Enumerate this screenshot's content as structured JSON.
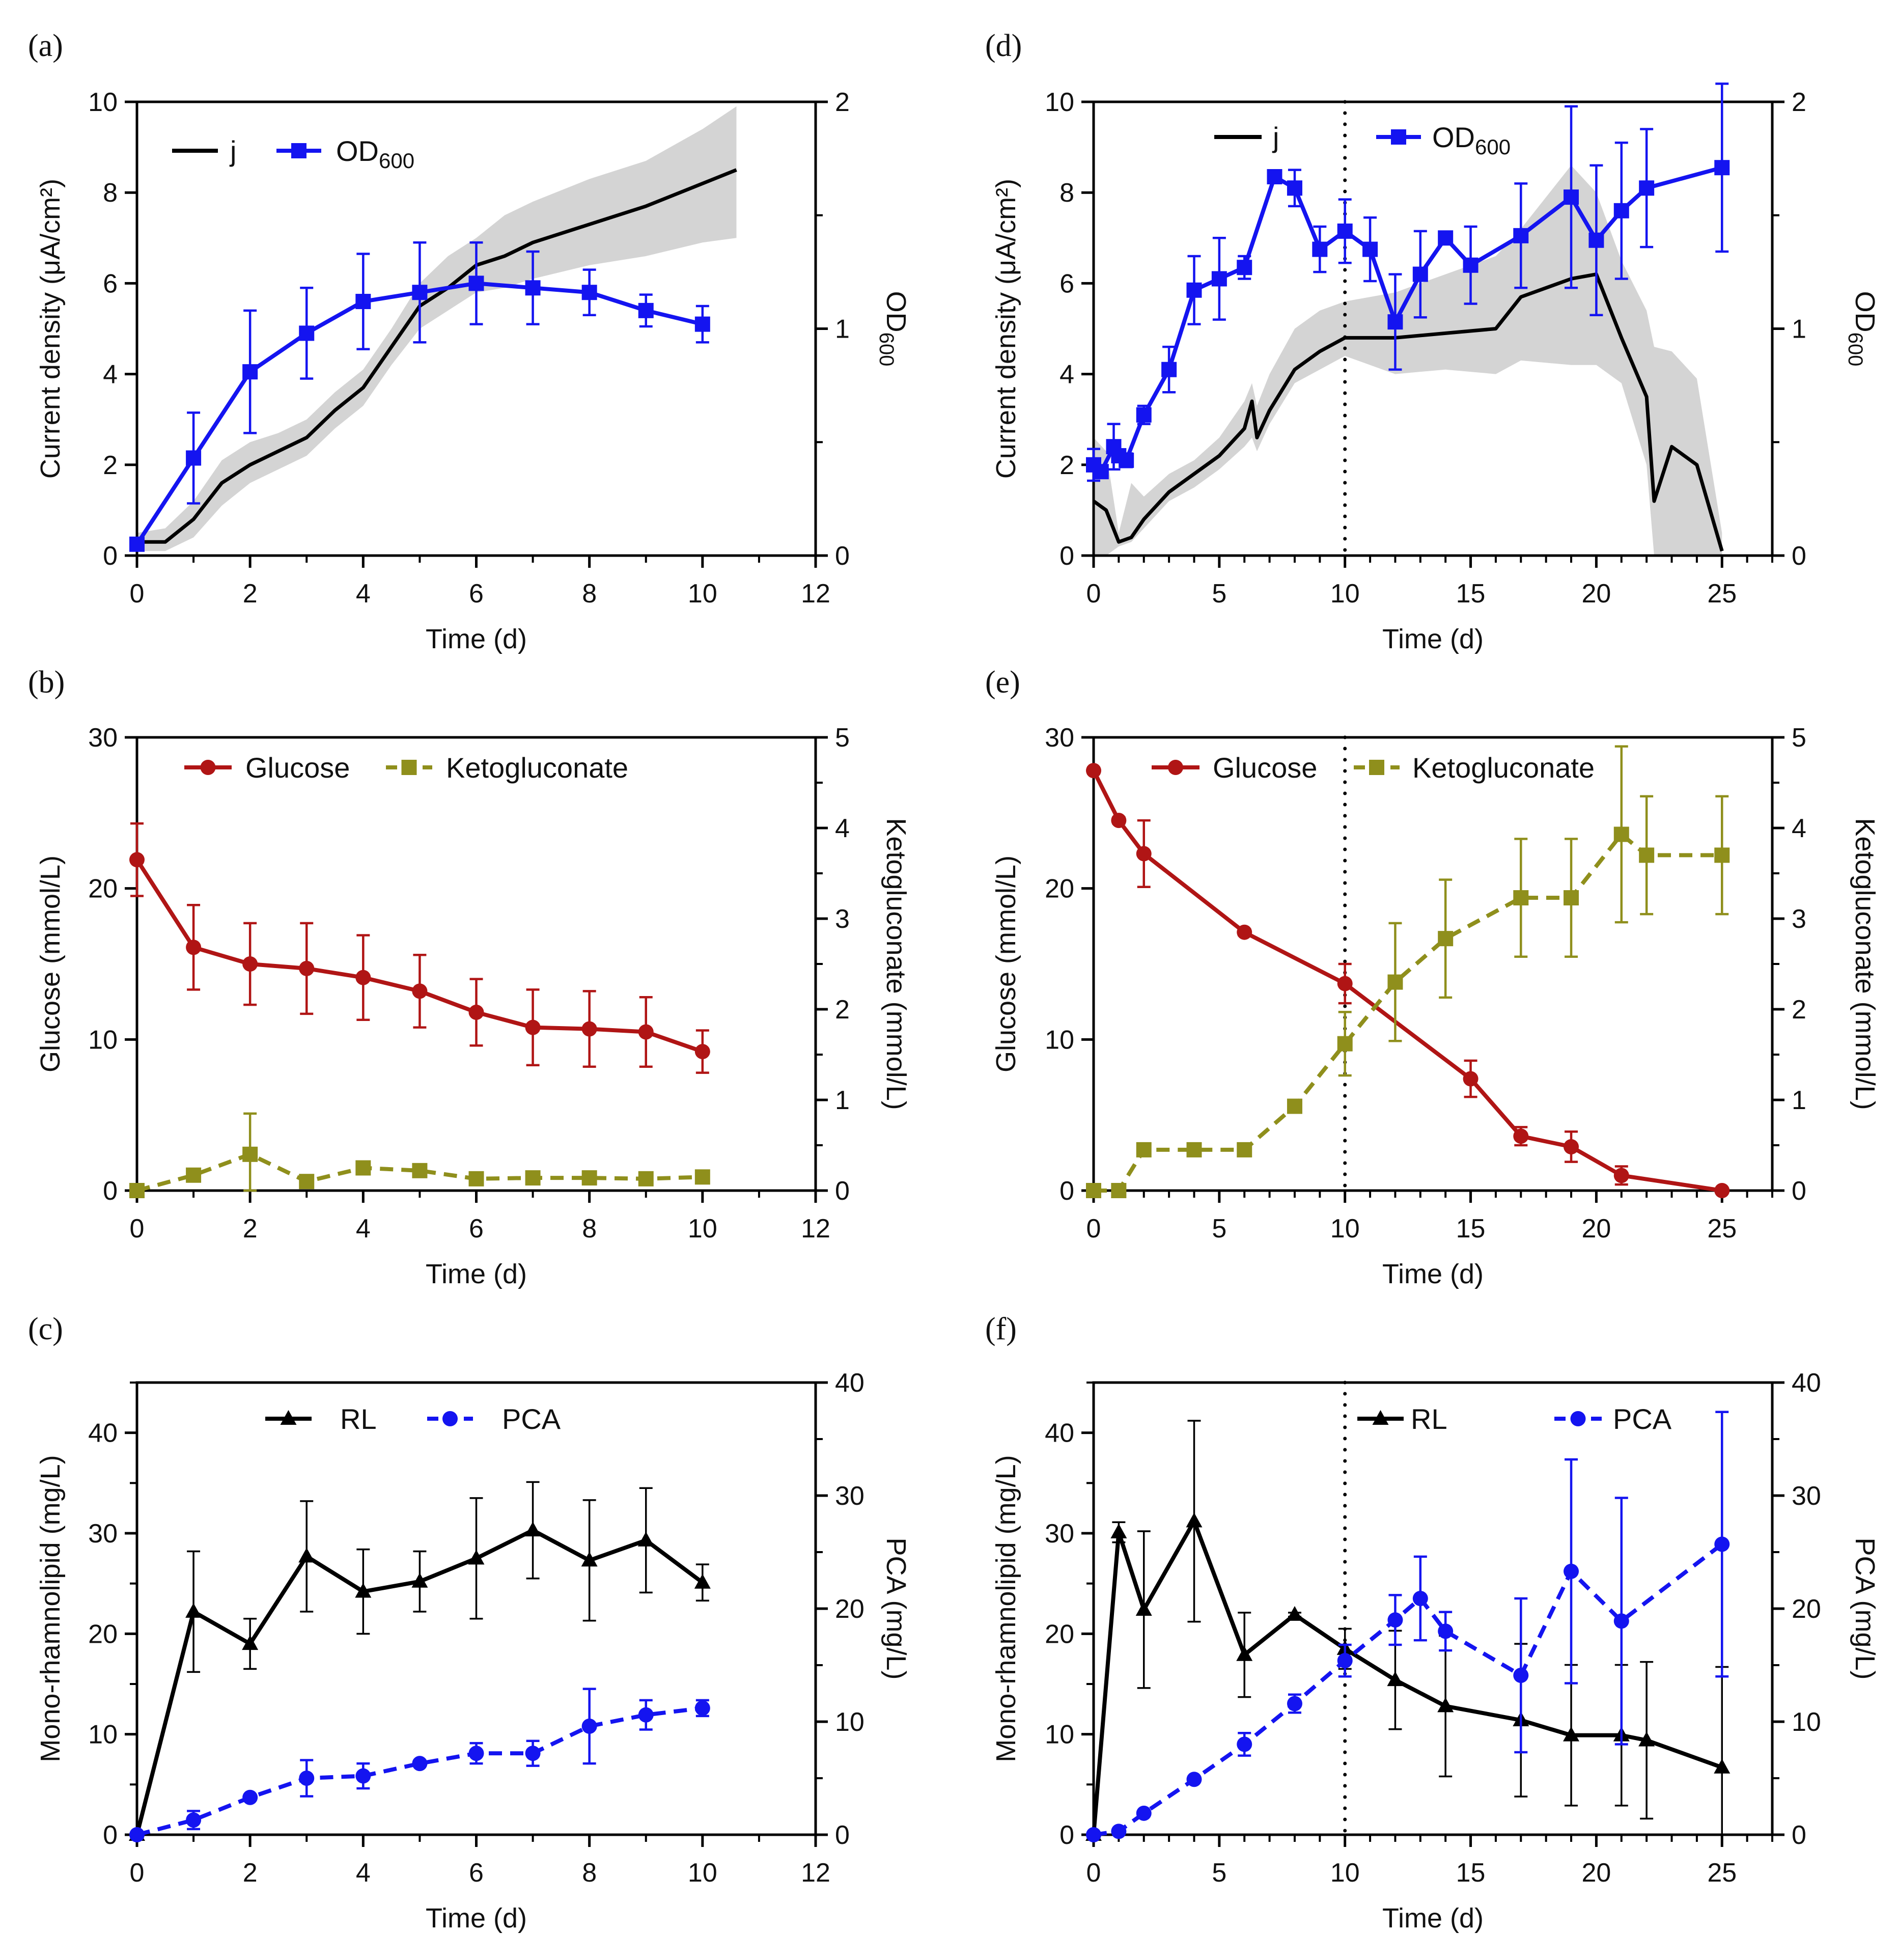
{
  "chart_data": [
    {
      "panel": "(a)",
      "type": "line",
      "xlabel": "Time (d)",
      "ylabel": "Current density (μA/cm²)",
      "y2label_main": "OD",
      "y2label_sub": "600",
      "xlim": [
        0,
        12
      ],
      "ylim": [
        0,
        10
      ],
      "y2lim": [
        0,
        2
      ],
      "xticks": [
        0,
        2,
        4,
        6,
        8,
        10,
        12
      ],
      "yticks": [
        0,
        2,
        4,
        6,
        8,
        10
      ],
      "y2ticks": [
        0,
        1,
        2
      ],
      "series": [
        {
          "name": "j",
          "label": "j",
          "sub": "",
          "axis": "y",
          "color": "#000000",
          "marker": "none",
          "dash": false,
          "x": [
            0,
            0.5,
            1,
            1.5,
            2,
            2.5,
            3,
            3.5,
            4,
            4.5,
            5,
            5.5,
            6,
            6.5,
            7,
            8,
            9,
            10,
            10.6
          ],
          "y": [
            0.3,
            0.3,
            0.8,
            1.6,
            2.0,
            2.3,
            2.6,
            3.2,
            3.7,
            4.6,
            5.5,
            5.9,
            6.4,
            6.6,
            6.9,
            7.3,
            7.7,
            8.2,
            8.5
          ],
          "band_lo": [
            0.1,
            0.1,
            0.4,
            1.1,
            1.6,
            1.9,
            2.2,
            2.8,
            3.3,
            4.2,
            5.0,
            5.4,
            5.8,
            5.9,
            6.1,
            6.4,
            6.6,
            6.9,
            7.0
          ],
          "band_hi": [
            0.5,
            0.6,
            1.2,
            2.1,
            2.5,
            2.7,
            3.0,
            3.6,
            4.1,
            5.0,
            6.0,
            6.6,
            7.0,
            7.5,
            7.8,
            8.3,
            8.7,
            9.4,
            9.9
          ]
        },
        {
          "name": "OD600",
          "label": "OD",
          "sub": "600",
          "axis": "y2",
          "color": "#1414f0",
          "marker": "square",
          "dash": false,
          "x": [
            0,
            1,
            2,
            3,
            4,
            5,
            6,
            7,
            8,
            9,
            10
          ],
          "y": [
            0.05,
            0.43,
            0.81,
            0.98,
            1.12,
            1.16,
            1.2,
            1.18,
            1.16,
            1.08,
            1.02
          ],
          "err": [
            0.02,
            0.2,
            0.27,
            0.2,
            0.21,
            0.22,
            0.18,
            0.16,
            0.1,
            0.07,
            0.08
          ]
        }
      ]
    },
    {
      "panel": "(b)",
      "type": "line",
      "xlabel": "Time (d)",
      "ylabel": "Glucose (mmol/L)",
      "y2label_main": "Ketogluconate (mmol/L)",
      "y2label_sub": "",
      "xlim": [
        0,
        12
      ],
      "ylim": [
        0,
        30
      ],
      "y2lim": [
        0,
        5
      ],
      "xticks": [
        0,
        2,
        4,
        6,
        8,
        10,
        12
      ],
      "yticks": [
        0,
        10,
        20,
        30
      ],
      "y2ticks": [
        0,
        1,
        2,
        3,
        4,
        5
      ],
      "series": [
        {
          "name": "Glucose",
          "label": "Glucose",
          "sub": "",
          "axis": "y",
          "color": "#b01515",
          "marker": "circle",
          "dash": false,
          "x": [
            0,
            1,
            2,
            3,
            4,
            5,
            6,
            7,
            8,
            9,
            10
          ],
          "y": [
            21.9,
            16.1,
            15.0,
            14.7,
            14.1,
            13.2,
            11.8,
            10.8,
            10.7,
            10.5,
            9.2
          ],
          "err": [
            2.4,
            2.8,
            2.7,
            3.0,
            2.8,
            2.4,
            2.2,
            2.5,
            2.5,
            2.3,
            1.4
          ]
        },
        {
          "name": "Ketogluconate",
          "label": "Ketogluconate",
          "sub": "",
          "axis": "y2",
          "color": "#8f8f1c",
          "marker": "square",
          "dash": true,
          "x": [
            0,
            1,
            2,
            3,
            4,
            5,
            6,
            7,
            8,
            9,
            10
          ],
          "y": [
            0,
            0.17,
            0.4,
            0.1,
            0.25,
            0.22,
            0.13,
            0.14,
            0.14,
            0.13,
            0.15
          ],
          "err": [
            0,
            0.02,
            0.45,
            0.03,
            0.03,
            0.02,
            0.02,
            0.02,
            0.02,
            0.02,
            0.02
          ]
        }
      ]
    },
    {
      "panel": "(c)",
      "type": "line",
      "xlabel": "Time (d)",
      "ylabel": "Mono-rhamnolipid (mg/L)",
      "y2label_main": "PCA (mg/L)",
      "y2label_sub": "",
      "xlim": [
        0,
        12
      ],
      "ylim": [
        0,
        45
      ],
      "y2lim": [
        0,
        40
      ],
      "xticks": [
        0,
        2,
        4,
        6,
        8,
        10,
        12
      ],
      "yticks": [
        0,
        10,
        20,
        30,
        40
      ],
      "y2ticks": [
        0,
        10,
        20,
        30,
        40
      ],
      "series": [
        {
          "name": "RL",
          "label": "RL",
          "sub": "",
          "axis": "y",
          "color": "#000000",
          "marker": "triangle",
          "dash": false,
          "thinErr": true,
          "x": [
            0,
            1,
            2,
            3,
            4,
            5,
            6,
            7,
            8,
            9,
            10
          ],
          "y": [
            0,
            22.2,
            19.0,
            27.7,
            24.2,
            25.2,
            27.5,
            30.3,
            27.3,
            29.3,
            25.1
          ],
          "err": [
            0,
            6.0,
            2.5,
            5.5,
            4.2,
            3.0,
            6.0,
            4.8,
            6.0,
            5.2,
            1.8
          ]
        },
        {
          "name": "PCA",
          "label": "PCA",
          "sub": "",
          "axis": "y2",
          "color": "#1414f0",
          "marker": "circle",
          "dash": true,
          "x": [
            0,
            1,
            2,
            3,
            4,
            5,
            6,
            7,
            8,
            9,
            10
          ],
          "y": [
            0,
            1.3,
            3.3,
            5.0,
            5.2,
            6.3,
            7.2,
            7.2,
            9.6,
            10.6,
            11.2
          ],
          "err": [
            0,
            0.8,
            0.2,
            1.6,
            1.1,
            0.2,
            0.9,
            1.1,
            3.3,
            1.3,
            0.7
          ]
        }
      ]
    },
    {
      "panel": "(d)",
      "type": "line",
      "xlabel": "Time (d)",
      "ylabel": "Current density (μA/cm²)",
      "y2label_main": "OD",
      "y2label_sub": "600",
      "xlim": [
        0,
        27
      ],
      "ylim": [
        0,
        10
      ],
      "y2lim": [
        0,
        2
      ],
      "vline": 10,
      "xticks": [
        0,
        5,
        10,
        15,
        20,
        25
      ],
      "yticks": [
        0,
        2,
        4,
        6,
        8,
        10
      ],
      "y2ticks": [
        0,
        1,
        2
      ],
      "series": [
        {
          "name": "j",
          "label": "j",
          "sub": "",
          "axis": "y",
          "color": "#000000",
          "marker": "none",
          "dash": false,
          "x": [
            0,
            0.5,
            1,
            1.5,
            2,
            3,
            4,
            5,
            6,
            6.3,
            6.5,
            7,
            8,
            9,
            10,
            12,
            14,
            16,
            17,
            19,
            20,
            21,
            22,
            22.3,
            23,
            24,
            25
          ],
          "y": [
            1.2,
            1.0,
            0.3,
            0.4,
            0.8,
            1.4,
            1.8,
            2.2,
            2.8,
            3.4,
            2.6,
            3.2,
            4.1,
            4.5,
            4.8,
            4.8,
            4.9,
            5.0,
            5.7,
            6.1,
            6.2,
            4.8,
            3.5,
            1.2,
            2.4,
            2.0,
            0.1
          ],
          "band_lo": [
            0,
            0,
            0.2,
            0.3,
            0.6,
            1.2,
            1.5,
            1.9,
            2.4,
            2.6,
            2.3,
            2.9,
            3.8,
            4.1,
            4.4,
            4.0,
            4.1,
            4.0,
            4.3,
            4.2,
            4.2,
            3.8,
            2.0,
            0,
            0,
            0,
            0
          ],
          "band_hi": [
            2.6,
            2.3,
            0.5,
            1.6,
            1.3,
            1.8,
            2.1,
            2.6,
            3.4,
            3.8,
            3.3,
            4.0,
            5.0,
            5.4,
            5.6,
            5.8,
            6.2,
            6.6,
            7.2,
            8.6,
            8.0,
            6.5,
            5.4,
            4.6,
            4.5,
            3.9,
            0.5
          ]
        },
        {
          "name": "OD600",
          "label": "OD",
          "sub": "600",
          "axis": "y2",
          "color": "#1414f0",
          "marker": "square",
          "dash": false,
          "x": [
            0,
            0.3,
            0.8,
            1.0,
            1.3,
            2,
            3,
            4,
            5,
            6,
            7.2,
            8,
            9,
            10,
            11,
            12,
            13,
            14,
            15,
            17,
            19,
            20,
            21,
            22,
            25
          ],
          "y": [
            0.4,
            0.37,
            0.48,
            0.44,
            0.42,
            0.62,
            0.82,
            1.17,
            1.22,
            1.27,
            1.67,
            1.62,
            1.35,
            1.43,
            1.35,
            1.03,
            1.24,
            1.4,
            1.28,
            1.41,
            1.58,
            1.39,
            1.52,
            1.62,
            1.71
          ],
          "err": [
            0.07,
            0.02,
            0.1,
            0.02,
            0.03,
            0.04,
            0.1,
            0.15,
            0.18,
            0.05,
            0.02,
            0.08,
            0.1,
            0.14,
            0.14,
            0.21,
            0.19,
            0.02,
            0.17,
            0.23,
            0.4,
            0.33,
            0.3,
            0.26,
            0.37
          ]
        }
      ]
    },
    {
      "panel": "(e)",
      "type": "line",
      "xlabel": "Time (d)",
      "ylabel": "Glucose (mmol/L)",
      "y2label_main": "Ketogluconate (mmol/L)",
      "y2label_sub": "",
      "xlim": [
        0,
        27
      ],
      "ylim": [
        0,
        30
      ],
      "y2lim": [
        0,
        5
      ],
      "vline": 10,
      "xticks": [
        0,
        5,
        10,
        15,
        20,
        25
      ],
      "yticks": [
        0,
        10,
        20,
        30
      ],
      "y2ticks": [
        0,
        1,
        2,
        3,
        4,
        5
      ],
      "series": [
        {
          "name": "Glucose",
          "label": "Glucose",
          "sub": "",
          "axis": "y",
          "color": "#b01515",
          "marker": "circle",
          "dash": false,
          "x": [
            0,
            1,
            2,
            6,
            10,
            15,
            17,
            19,
            21,
            25
          ],
          "y": [
            27.8,
            24.5,
            22.3,
            17.1,
            13.7,
            7.4,
            3.6,
            2.9,
            1.0,
            0
          ],
          "err": [
            0.2,
            0.2,
            2.2,
            0.2,
            1.3,
            1.2,
            0.6,
            1.0,
            0.6,
            0
          ]
        },
        {
          "name": "Ketogluconate",
          "label": "Ketogluconate",
          "sub": "",
          "axis": "y2",
          "color": "#8f8f1c",
          "marker": "square",
          "dash": true,
          "x": [
            0,
            1,
            2,
            4,
            6,
            8,
            10,
            12,
            14,
            17,
            19,
            21,
            22,
            25
          ],
          "y": [
            0,
            0,
            0.45,
            0.45,
            0.45,
            0.93,
            1.62,
            2.3,
            2.78,
            3.23,
            3.23,
            3.93,
            3.7,
            3.7
          ],
          "err": [
            0,
            0,
            0.02,
            0.02,
            0.02,
            0.02,
            0.35,
            0.65,
            0.65,
            0.65,
            0.65,
            0.97,
            0.65,
            0.65
          ]
        }
      ]
    },
    {
      "panel": "(f)",
      "type": "line",
      "xlabel": "Time (d)",
      "ylabel": "Mono-rhamnolipid (mg/L)",
      "y2label_main": "PCA (mg/L)",
      "y2label_sub": "",
      "xlim": [
        0,
        27
      ],
      "ylim": [
        0,
        45
      ],
      "y2lim": [
        0,
        40
      ],
      "vline": 10,
      "xticks": [
        0,
        5,
        10,
        15,
        20,
        25
      ],
      "yticks": [
        0,
        10,
        20,
        30,
        40
      ],
      "y2ticks": [
        0,
        10,
        20,
        30,
        40
      ],
      "series": [
        {
          "name": "RL",
          "label": "RL",
          "sub": "",
          "axis": "y",
          "color": "#000000",
          "marker": "triangle",
          "dash": false,
          "thinErr": true,
          "x": [
            0,
            1,
            2,
            4,
            6,
            8,
            10,
            12,
            14,
            17,
            19,
            21,
            22,
            25
          ],
          "y": [
            0,
            30.1,
            22.4,
            31.2,
            17.9,
            21.9,
            18.5,
            15.4,
            12.8,
            11.4,
            9.9,
            9.9,
            9.4,
            6.7
          ],
          "err": [
            0,
            1.0,
            7.8,
            10.0,
            4.2,
            0.2,
            2.0,
            4.9,
            7.0,
            7.6,
            7.0,
            7.0,
            7.8,
            10.0
          ]
        },
        {
          "name": "PCA",
          "label": "PCA",
          "sub": "",
          "axis": "y2",
          "color": "#1414f0",
          "marker": "circle",
          "dash": true,
          "x": [
            0,
            1,
            2,
            4,
            6,
            8,
            10,
            12,
            13,
            14,
            17,
            19,
            21,
            25
          ],
          "y": [
            0,
            0.3,
            1.9,
            4.9,
            8.0,
            11.6,
            15.4,
            19.0,
            20.9,
            18.0,
            14.1,
            23.3,
            18.9,
            25.7
          ],
          "err": [
            0,
            0.1,
            0.2,
            0.2,
            1.0,
            0.8,
            1.4,
            2.2,
            3.7,
            1.7,
            6.8,
            9.9,
            10.9,
            11.7
          ]
        }
      ]
    }
  ]
}
